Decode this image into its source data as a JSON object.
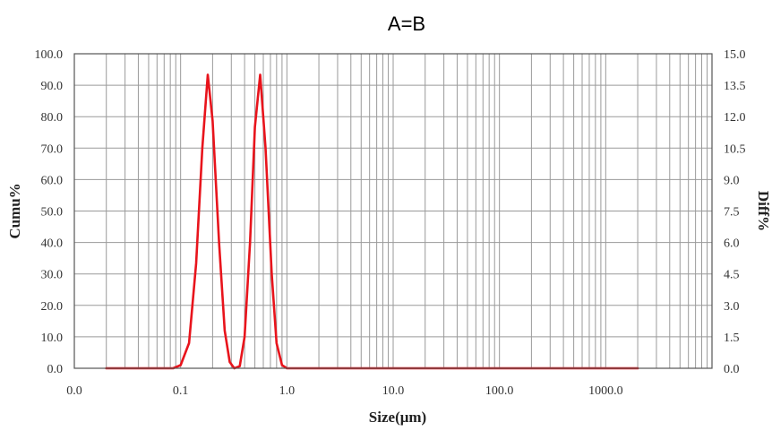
{
  "chart_data": {
    "type": "line",
    "title": "A=B",
    "xlabel": "Size(μm)",
    "ylabel_left": "Cumu%",
    "ylabel_right": "Diff%",
    "x_scale": "log",
    "xlim": [
      0.01,
      10000
    ],
    "ylim_left": [
      0,
      100
    ],
    "ylim_right": [
      0,
      15
    ],
    "x_tick_values": [
      0.01,
      0.1,
      1,
      10,
      100,
      1000
    ],
    "x_tick_labels": [
      "0.0",
      "0.1",
      "1.0",
      "10.0",
      "100.0",
      "1000.0"
    ],
    "y_left_ticks": [
      "0.0",
      "10.0",
      "20.0",
      "30.0",
      "40.0",
      "50.0",
      "60.0",
      "70.0",
      "80.0",
      "90.0",
      "100.0"
    ],
    "y_right_ticks": [
      "0.0",
      "1.5",
      "3.0",
      "4.5",
      "6.0",
      "7.5",
      "9.0",
      "10.5",
      "12.0",
      "13.5",
      "15.0"
    ],
    "grid": true,
    "legend": "none",
    "series": [
      {
        "axis": "right",
        "color": "#e8141c",
        "x": [
          0.02,
          0.085,
          0.1,
          0.12,
          0.14,
          0.16,
          0.18,
          0.2,
          0.23,
          0.26,
          0.29,
          0.32,
          0.36,
          0.4,
          0.45,
          0.5,
          0.56,
          0.63,
          0.72,
          0.8,
          0.9,
          1.0,
          1.2,
          2000
        ],
        "y": [
          0.0,
          0.0,
          0.15,
          1.2,
          5.0,
          10.5,
          14.0,
          11.8,
          6.0,
          1.8,
          0.3,
          0.0,
          0.1,
          1.5,
          6.0,
          11.5,
          14.0,
          10.5,
          4.5,
          1.2,
          0.15,
          0.0,
          0.0,
          0.0
        ]
      }
    ]
  }
}
